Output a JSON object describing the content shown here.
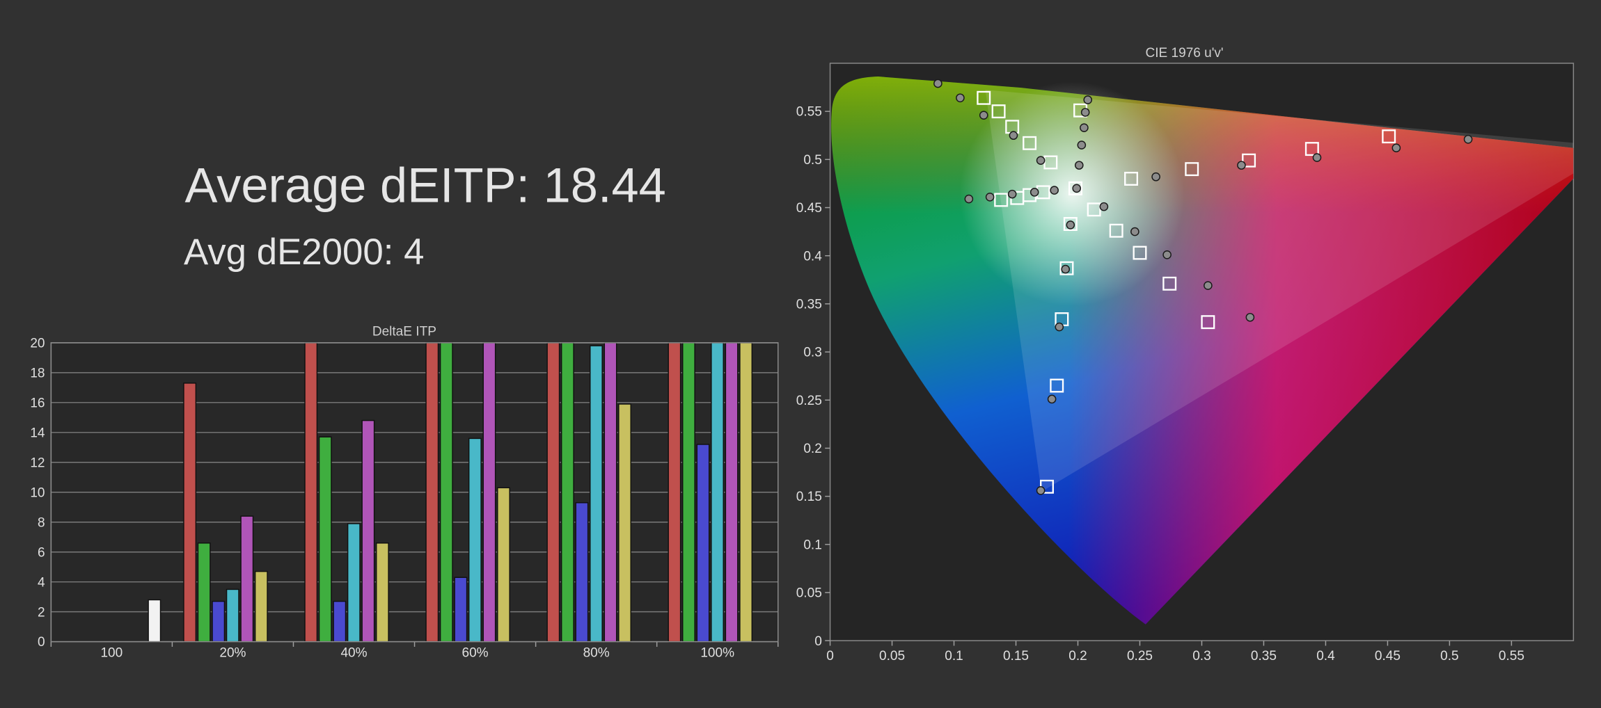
{
  "headline": {
    "average": "Average dEITP: 18.44",
    "avg_de2000": "Avg dE2000: 4"
  },
  "chart_data": [
    {
      "type": "bar",
      "title": "DeltaE ITP",
      "categories": [
        "100",
        "20%",
        "40%",
        "60%",
        "80%",
        "100%"
      ],
      "series": [
        {
          "color": "#c0504d",
          "values": [
            null,
            17.3,
            20,
            20,
            20,
            20
          ]
        },
        {
          "color": "#3fae3f",
          "values": [
            null,
            6.6,
            13.7,
            20,
            20,
            20
          ]
        },
        {
          "color": "#4a4ad0",
          "values": [
            null,
            2.7,
            2.7,
            4.3,
            9.3,
            13.2
          ]
        },
        {
          "color": "#49b8c8",
          "values": [
            null,
            3.5,
            7.9,
            13.6,
            19.8,
            20
          ]
        },
        {
          "color": "#b055b8",
          "values": [
            null,
            8.4,
            14.8,
            20,
            20,
            20
          ]
        },
        {
          "color": "#c8c060",
          "values": [
            null,
            4.7,
            6.6,
            10.3,
            15.9,
            20
          ]
        },
        {
          "color": "#f2f2f2",
          "values": [
            2.8,
            null,
            null,
            null,
            null,
            null
          ]
        }
      ],
      "ylim": [
        0,
        20
      ],
      "yticks": [
        0,
        2,
        4,
        6,
        8,
        10,
        12,
        14,
        16,
        18,
        20
      ],
      "grid": true
    },
    {
      "type": "scatter",
      "title": "CIE 1976 u'v'",
      "xlim": [
        0,
        0.6
      ],
      "ylim": [
        0,
        0.6
      ],
      "xticks": [
        0,
        0.05,
        0.1,
        0.15,
        0.2,
        0.25,
        0.3,
        0.35,
        0.4,
        0.45,
        0.5,
        0.55
      ],
      "yticks": [
        0,
        0.05,
        0.1,
        0.15,
        0.2,
        0.25,
        0.3,
        0.35,
        0.4,
        0.45,
        0.5,
        0.55
      ],
      "series": [
        {
          "marker": "square",
          "color": "#ffffff",
          "x": [
            0.124,
            0.136,
            0.147,
            0.161,
            0.178,
            0.202,
            0.198,
            0.243,
            0.292,
            0.338,
            0.389,
            0.451,
            0.138,
            0.151,
            0.161,
            0.172,
            0.213,
            0.194,
            0.231,
            0.25,
            0.274,
            0.305,
            0.191,
            0.187,
            0.183,
            0.175
          ],
          "values": [
            0.564,
            0.55,
            0.534,
            0.517,
            0.497,
            0.551,
            0.47,
            0.48,
            0.49,
            0.499,
            0.511,
            0.524,
            0.458,
            0.46,
            0.463,
            0.466,
            0.448,
            0.433,
            0.426,
            0.403,
            0.371,
            0.331,
            0.387,
            0.334,
            0.265,
            0.16
          ]
        },
        {
          "marker": "circle",
          "color": "#8c8c8c",
          "x": [
            0.087,
            0.105,
            0.124,
            0.148,
            0.17,
            0.208,
            0.206,
            0.205,
            0.203,
            0.201,
            0.199,
            0.112,
            0.129,
            0.147,
            0.165,
            0.181,
            0.221,
            0.194,
            0.246,
            0.272,
            0.305,
            0.339,
            0.19,
            0.185,
            0.179,
            0.17,
            0.263,
            0.332,
            0.393,
            0.457,
            0.515
          ],
          "values": [
            0.579,
            0.564,
            0.546,
            0.525,
            0.499,
            0.562,
            0.549,
            0.533,
            0.515,
            0.494,
            0.47,
            0.459,
            0.461,
            0.464,
            0.466,
            0.468,
            0.451,
            0.432,
            0.425,
            0.401,
            0.369,
            0.336,
            0.386,
            0.326,
            0.251,
            0.156,
            0.482,
            0.494,
            0.502,
            0.512,
            0.521
          ]
        }
      ]
    }
  ]
}
